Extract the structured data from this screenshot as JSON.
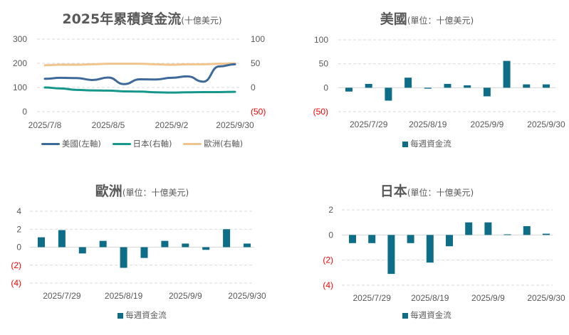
{
  "colors": {
    "us": "#3e6a9a",
    "japan": "#16978c",
    "europe": "#f0c48e",
    "bar": "#0f6e87",
    "negative": "#ff0000"
  },
  "chart_data": [
    {
      "type": "line",
      "title": "2025年累積資金流",
      "title_unit": "(十億美元)",
      "x": [
        "2025/7/8",
        "2025/7/15",
        "2025/7/22",
        "2025/7/29",
        "2025/8/5",
        "2025/8/12",
        "2025/8/19",
        "2025/8/26",
        "2025/9/2",
        "2025/9/9",
        "2025/9/16",
        "2025/9/23",
        "2025/9/30"
      ],
      "xticks": [
        "2025/7/8",
        "2025/8/5",
        "2025/9/2",
        "2025/9/30"
      ],
      "y_left": {
        "ticks": [
          "0",
          "100",
          "200",
          "300"
        ],
        "range": [
          0,
          300
        ]
      },
      "y_right": {
        "ticks": [
          "(50)",
          "0",
          "50",
          "100"
        ],
        "range": [
          -50,
          100
        ]
      },
      "series": [
        {
          "name": "美國(左軸)",
          "axis": "left",
          "color_key": "us",
          "values": [
            136,
            140,
            139,
            131,
            141,
            114,
            134,
            133,
            140,
            146,
            124,
            187,
            196
          ]
        },
        {
          "name": "日本(右軸)",
          "axis": "right",
          "color_key": "japan",
          "values": [
            0,
            -2,
            -5,
            -6,
            -6.5,
            -8,
            -8.5,
            -10,
            -10.5,
            -10,
            -9.5,
            -9.5,
            -9
          ]
        },
        {
          "name": "歐洲(右軸)",
          "axis": "right",
          "color_key": "europe",
          "values": [
            46,
            47,
            47,
            48,
            49,
            49,
            49,
            48,
            47,
            48,
            48,
            49,
            50
          ]
        }
      ],
      "grid": true,
      "legend": "bottom"
    },
    {
      "type": "bar",
      "title": "美國",
      "title_unit": "(單位：十億美元)",
      "categories": [
        "2025/7/22",
        "2025/7/29",
        "2025/8/5",
        "2025/8/12",
        "2025/8/19",
        "2025/8/26",
        "2025/9/2",
        "2025/9/9",
        "2025/9/16",
        "2025/9/23",
        "2025/9/30"
      ],
      "values": [
        -8,
        8,
        -27,
        21,
        -2,
        8,
        5,
        -18,
        56,
        7,
        7
      ],
      "xticks": [
        "2025/7/29",
        "2025/8/19",
        "2025/9/9",
        "2025/9/30"
      ],
      "yticks": [
        "(50)",
        "0",
        "50",
        "100"
      ],
      "ylim": [
        -50,
        100
      ],
      "legend_label": "每週資金流",
      "grid": true,
      "legend": "bottom"
    },
    {
      "type": "bar",
      "title": "歐洲",
      "title_unit": "(單位：十億美元)",
      "categories": [
        "2025/7/22",
        "2025/7/29",
        "2025/8/5",
        "2025/8/12",
        "2025/8/19",
        "2025/8/26",
        "2025/9/2",
        "2025/9/9",
        "2025/9/16",
        "2025/9/23",
        "2025/9/30"
      ],
      "values": [
        1.1,
        1.9,
        -0.7,
        0.7,
        -2.3,
        -1.2,
        0.7,
        0.4,
        -0.3,
        2.0,
        0.4
      ],
      "xticks": [
        "2025/7/29",
        "2025/8/19",
        "2025/9/9",
        "2025/9/30"
      ],
      "yticks": [
        "(4)",
        "(2)",
        "0",
        "2",
        "4"
      ],
      "ylim": [
        -4,
        4
      ],
      "legend_label": "每週資金流",
      "grid": true,
      "legend": "bottom"
    },
    {
      "type": "bar",
      "title": "日本",
      "title_unit": "(單位：十億美元)",
      "categories": [
        "2025/7/22",
        "2025/7/29",
        "2025/8/5",
        "2025/8/12",
        "2025/8/19",
        "2025/8/26",
        "2025/9/2",
        "2025/9/9",
        "2025/9/16",
        "2025/9/23",
        "2025/9/30"
      ],
      "values": [
        -0.65,
        -0.65,
        -3.1,
        -0.65,
        -2.2,
        -0.9,
        1.0,
        1.0,
        0.05,
        0.7,
        0.1
      ],
      "xticks": [
        "2025/7/29",
        "2025/8/19",
        "2025/9/9",
        "2025/9/30"
      ],
      "yticks": [
        "(4)",
        "(2)",
        "0",
        "2"
      ],
      "ylim": [
        -4,
        2
      ],
      "legend_label": "每週資金流",
      "grid": true,
      "legend": "bottom"
    }
  ]
}
